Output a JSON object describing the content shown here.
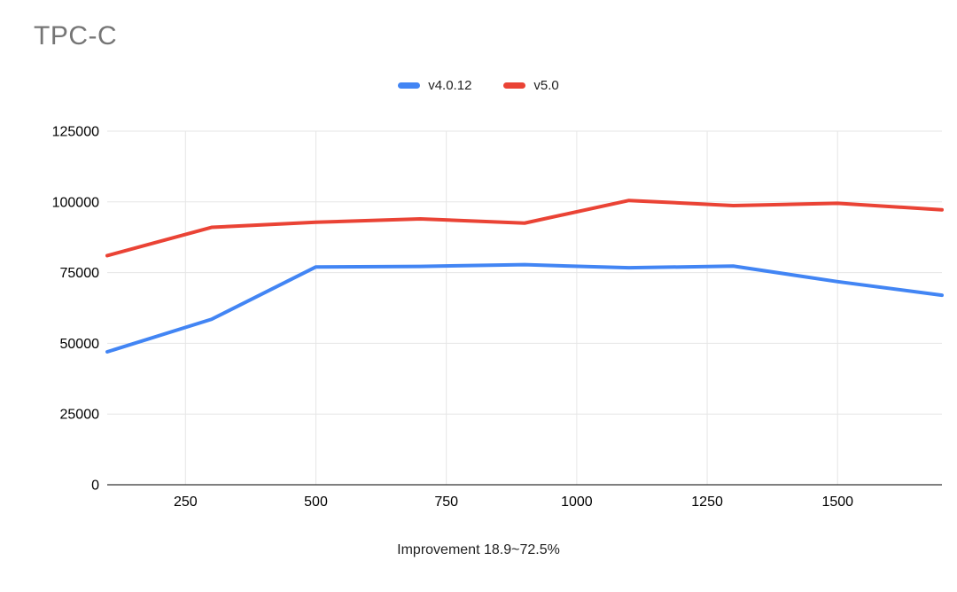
{
  "chart_data": {
    "type": "line",
    "title": "TPC-C",
    "xlabel": "Improvement 18.9~72.5%",
    "ylabel": "",
    "x": [
      100,
      300,
      500,
      700,
      900,
      1100,
      1300,
      1500,
      1700
    ],
    "series": [
      {
        "name": "v4.0.12",
        "color": "#4285f4",
        "values": [
          47000,
          58500,
          77000,
          77200,
          77800,
          76700,
          77300,
          71800,
          67000
        ]
      },
      {
        "name": "v5.0",
        "color": "#ea4335",
        "values": [
          81000,
          91000,
          92800,
          94000,
          92500,
          100500,
          98700,
          99500,
          97200
        ]
      }
    ],
    "xlim": [
      100,
      1700
    ],
    "ylim": [
      0,
      125000
    ],
    "xticks": [
      250,
      500,
      750,
      1000,
      1250,
      1500
    ],
    "yticks": [
      0,
      25000,
      50000,
      75000,
      100000,
      125000
    ],
    "grid": true,
    "legend_position": "top",
    "colors": {
      "gridline": "#e6e6e6",
      "axis_line": "#333333",
      "title_text": "#757575",
      "tick_text": "#000000"
    }
  }
}
